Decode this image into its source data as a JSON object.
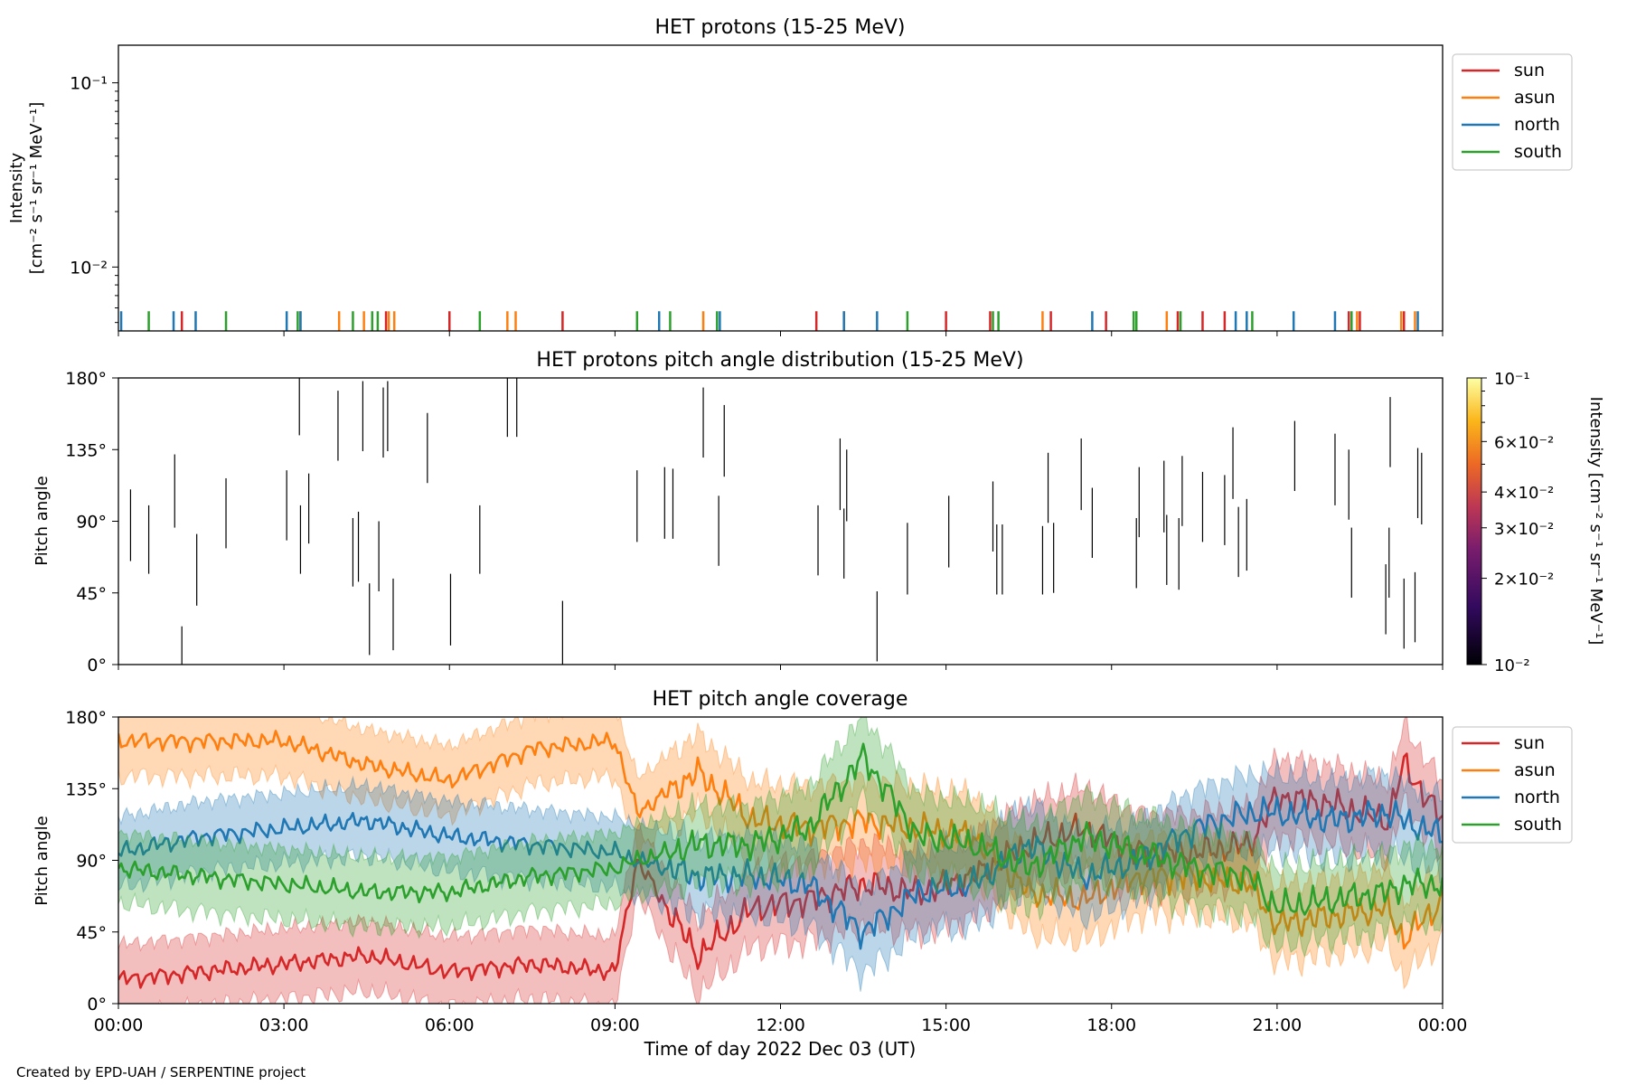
{
  "footer": "Created by EPD-UAH / SERPENTINE project",
  "x_axis": {
    "label": "Time of day 2022 Dec 03 (UT)",
    "ticks": [
      "00:00",
      "03:00",
      "06:00",
      "09:00",
      "12:00",
      "15:00",
      "18:00",
      "21:00",
      "00:00"
    ],
    "range_hours": [
      0,
      24
    ]
  },
  "colors": {
    "sun": "#d62728",
    "asun": "#ff7f0e",
    "north": "#1f77b4",
    "south": "#2ca02c"
  },
  "chart_data": [
    {
      "type": "line",
      "title": "HET protons (15-25 MeV)",
      "ylabel_line1": "Intensity",
      "ylabel_line2": "[cm⁻² s⁻¹ sr⁻¹ MeV⁻¹]",
      "yscale": "log",
      "ylim": [
        0.0045,
        0.16
      ],
      "yticks": [
        {
          "value": 0.01,
          "label": "10⁻²"
        },
        {
          "value": 0.1,
          "label": "10⁻¹"
        }
      ],
      "legend": {
        "placement": "outside-right",
        "entries": [
          "sun",
          "asun",
          "north",
          "south"
        ]
      },
      "series": [
        {
          "name": "sun",
          "value": 0.0055,
          "x": [
            1.15,
            4.85,
            6.0,
            8.05,
            12.65,
            15.0,
            15.8,
            16.9,
            17.9,
            19.2,
            19.65,
            20.05,
            22.3,
            22.5,
            23.3
          ]
        },
        {
          "name": "asun",
          "value": 0.0055,
          "x": [
            3.3,
            4.0,
            4.45,
            4.9,
            5.0,
            7.05,
            7.2,
            10.6,
            13.15,
            16.75,
            18.45,
            19.0,
            22.45,
            23.25,
            23.5
          ]
        },
        {
          "name": "north",
          "value": 0.0055,
          "x": [
            0.05,
            1.0,
            1.4,
            3.05,
            3.3,
            9.8,
            10.9,
            13.15,
            13.75,
            17.65,
            20.25,
            20.45,
            21.3,
            22.05,
            23.55
          ]
        },
        {
          "name": "south",
          "value": 0.0055,
          "x": [
            0.55,
            1.95,
            3.25,
            4.25,
            4.6,
            4.7,
            6.55,
            9.4,
            10.0,
            10.85,
            14.3,
            15.85,
            15.95,
            18.4,
            18.45,
            19.25,
            20.55,
            22.35
          ]
        }
      ]
    },
    {
      "type": "heatmap",
      "title": "HET protons pitch angle distribution (15-25 MeV)",
      "ylabel": "Pitch angle",
      "ylim": [
        0,
        180
      ],
      "yticks": [
        "0°",
        "45°",
        "90°",
        "135°",
        "180°"
      ],
      "colorbar": {
        "label": "Intensity [cm⁻² s⁻¹ sr⁻¹ MeV⁻¹]",
        "scale": "log",
        "range": [
          0.01,
          0.1
        ],
        "ticks": [
          {
            "value": 0.01,
            "label": "10⁻²"
          },
          {
            "value": 0.02,
            "label": "2×10⁻²"
          },
          {
            "value": 0.03,
            "label": "3×10⁻²"
          },
          {
            "value": 0.04,
            "label": "4×10⁻²"
          },
          {
            "value": 0.06,
            "label": "6×10⁻²"
          },
          {
            "value": 0.1,
            "label": "10⁻¹"
          }
        ]
      },
      "marks": [
        {
          "x": 0.22,
          "y0": 65,
          "y1": 110
        },
        {
          "x": 0.55,
          "y0": 57,
          "y1": 100
        },
        {
          "x": 1.02,
          "y0": 86,
          "y1": 132
        },
        {
          "x": 1.15,
          "y0": 0,
          "y1": 24
        },
        {
          "x": 1.42,
          "y0": 37,
          "y1": 82
        },
        {
          "x": 1.95,
          "y0": 73,
          "y1": 117
        },
        {
          "x": 3.05,
          "y0": 78,
          "y1": 122
        },
        {
          "x": 3.28,
          "y0": 144,
          "y1": 180
        },
        {
          "x": 3.3,
          "y0": 57,
          "y1": 100
        },
        {
          "x": 3.45,
          "y0": 76,
          "y1": 120
        },
        {
          "x": 3.98,
          "y0": 128,
          "y1": 172
        },
        {
          "x": 4.25,
          "y0": 49,
          "y1": 92
        },
        {
          "x": 4.35,
          "y0": 52,
          "y1": 96
        },
        {
          "x": 4.43,
          "y0": 134,
          "y1": 178
        },
        {
          "x": 4.55,
          "y0": 6,
          "y1": 51
        },
        {
          "x": 4.72,
          "y0": 46,
          "y1": 90
        },
        {
          "x": 4.8,
          "y0": 130,
          "y1": 174
        },
        {
          "x": 4.88,
          "y0": 134,
          "y1": 178
        },
        {
          "x": 4.98,
          "y0": 9,
          "y1": 54
        },
        {
          "x": 5.6,
          "y0": 114,
          "y1": 158
        },
        {
          "x": 6.02,
          "y0": 12,
          "y1": 57
        },
        {
          "x": 6.55,
          "y0": 57,
          "y1": 100
        },
        {
          "x": 7.05,
          "y0": 143,
          "y1": 180
        },
        {
          "x": 7.22,
          "y0": 143,
          "y1": 180
        },
        {
          "x": 8.05,
          "y0": 0,
          "y1": 40
        },
        {
          "x": 9.4,
          "y0": 77,
          "y1": 122
        },
        {
          "x": 9.9,
          "y0": 79,
          "y1": 124
        },
        {
          "x": 10.05,
          "y0": 79,
          "y1": 123
        },
        {
          "x": 10.6,
          "y0": 130,
          "y1": 174
        },
        {
          "x": 10.88,
          "y0": 62,
          "y1": 106
        },
        {
          "x": 10.98,
          "y0": 118,
          "y1": 163
        },
        {
          "x": 12.68,
          "y0": 56,
          "y1": 100
        },
        {
          "x": 13.08,
          "y0": 97,
          "y1": 142
        },
        {
          "x": 13.15,
          "y0": 54,
          "y1": 98
        },
        {
          "x": 13.2,
          "y0": 90,
          "y1": 135
        },
        {
          "x": 13.75,
          "y0": 2,
          "y1": 46
        },
        {
          "x": 14.3,
          "y0": 44,
          "y1": 89
        },
        {
          "x": 15.05,
          "y0": 61,
          "y1": 106
        },
        {
          "x": 15.85,
          "y0": 71,
          "y1": 115
        },
        {
          "x": 15.92,
          "y0": 44,
          "y1": 88
        },
        {
          "x": 16.02,
          "y0": 44,
          "y1": 88
        },
        {
          "x": 16.75,
          "y0": 44,
          "y1": 87
        },
        {
          "x": 16.85,
          "y0": 89,
          "y1": 133
        },
        {
          "x": 16.95,
          "y0": 45,
          "y1": 89
        },
        {
          "x": 17.45,
          "y0": 97,
          "y1": 142
        },
        {
          "x": 17.65,
          "y0": 67,
          "y1": 111
        },
        {
          "x": 18.45,
          "y0": 48,
          "y1": 92
        },
        {
          "x": 18.5,
          "y0": 80,
          "y1": 124
        },
        {
          "x": 18.95,
          "y0": 83,
          "y1": 128
        },
        {
          "x": 19.0,
          "y0": 50,
          "y1": 94
        },
        {
          "x": 19.22,
          "y0": 47,
          "y1": 92
        },
        {
          "x": 19.28,
          "y0": 87,
          "y1": 131
        },
        {
          "x": 19.65,
          "y0": 77,
          "y1": 121
        },
        {
          "x": 20.05,
          "y0": 75,
          "y1": 119
        },
        {
          "x": 20.2,
          "y0": 104,
          "y1": 149
        },
        {
          "x": 20.3,
          "y0": 55,
          "y1": 99
        },
        {
          "x": 20.45,
          "y0": 59,
          "y1": 104
        },
        {
          "x": 21.32,
          "y0": 109,
          "y1": 153
        },
        {
          "x": 22.05,
          "y0": 100,
          "y1": 145
        },
        {
          "x": 22.3,
          "y0": 91,
          "y1": 135
        },
        {
          "x": 22.35,
          "y0": 42,
          "y1": 86
        },
        {
          "x": 22.97,
          "y0": 19,
          "y1": 63
        },
        {
          "x": 23.03,
          "y0": 42,
          "y1": 86
        },
        {
          "x": 23.05,
          "y0": 124,
          "y1": 168
        },
        {
          "x": 23.3,
          "y0": 10,
          "y1": 54
        },
        {
          "x": 23.5,
          "y0": 14,
          "y1": 58
        },
        {
          "x": 23.55,
          "y0": 92,
          "y1": 136
        },
        {
          "x": 23.62,
          "y0": 88,
          "y1": 133
        }
      ]
    },
    {
      "type": "area",
      "title": "HET pitch angle coverage",
      "ylabel": "Pitch angle",
      "ylim": [
        0,
        180
      ],
      "yticks": [
        "0°",
        "45°",
        "90°",
        "135°",
        "180°"
      ],
      "legend": {
        "placement": "outside-right",
        "entries": [
          "sun",
          "asun",
          "north",
          "south"
        ]
      },
      "series": [
        {
          "name": "sun",
          "x": [
            0,
            1.5,
            3,
            4.5,
            6,
            7.5,
            9,
            9.4,
            10.5,
            11.5,
            12.5,
            13.5,
            14.5,
            15.5,
            16.5,
            17.5,
            18.5,
            19.5,
            20.5,
            21.0,
            22,
            23,
            23.3,
            24
          ],
          "center": [
            15,
            20,
            25,
            30,
            20,
            25,
            20,
            90,
            30,
            60,
            65,
            75,
            70,
            80,
            100,
            110,
            95,
            95,
            100,
            130,
            125,
            115,
            150,
            115
          ],
          "halfwidth": [
            22,
            22,
            22,
            22,
            22,
            22,
            22,
            22,
            24,
            24,
            26,
            26,
            26,
            26,
            26,
            26,
            24,
            24,
            24,
            24,
            24,
            24,
            24,
            24
          ]
        },
        {
          "name": "asun",
          "x": [
            0,
            1.5,
            3,
            4.5,
            6,
            7.5,
            9,
            9.4,
            10.5,
            11.5,
            12.5,
            13.5,
            14.5,
            15.5,
            16.5,
            17.5,
            18.5,
            19.5,
            20.5,
            21.0,
            22,
            23,
            23.3,
            24
          ],
          "center": [
            165,
            165,
            165,
            150,
            140,
            160,
            165,
            120,
            145,
            115,
            110,
            115,
            110,
            105,
            70,
            65,
            80,
            80,
            75,
            50,
            55,
            60,
            40,
            65
          ],
          "halfwidth": [
            22,
            22,
            22,
            22,
            22,
            22,
            22,
            22,
            24,
            24,
            26,
            26,
            26,
            26,
            26,
            26,
            24,
            24,
            24,
            24,
            24,
            24,
            24,
            24
          ]
        },
        {
          "name": "north",
          "x": [
            0,
            1.5,
            3,
            4.5,
            6,
            7.5,
            9,
            9.4,
            10.5,
            11.5,
            12.5,
            13.5,
            14.5,
            15.5,
            16.5,
            17.5,
            18.5,
            19.5,
            20.5,
            21.0,
            22,
            23,
            23.3,
            24
          ],
          "center": [
            95,
            105,
            110,
            115,
            105,
            100,
            95,
            90,
            80,
            80,
            75,
            45,
            70,
            75,
            100,
            80,
            90,
            110,
            120,
            120,
            115,
            120,
            115,
            105
          ],
          "halfwidth": [
            22,
            22,
            22,
            22,
            22,
            22,
            22,
            22,
            24,
            24,
            26,
            26,
            26,
            26,
            26,
            26,
            24,
            24,
            24,
            24,
            24,
            24,
            24,
            24
          ]
        },
        {
          "name": "south",
          "x": [
            0,
            1.5,
            3,
            4.5,
            6,
            7.5,
            9,
            9.4,
            10.5,
            11.5,
            12.5,
            13.5,
            14.5,
            15.5,
            16.5,
            17.5,
            18.5,
            19.5,
            20.5,
            21.0,
            22,
            23,
            23.3,
            24
          ],
          "center": [
            85,
            80,
            75,
            70,
            70,
            80,
            85,
            90,
            100,
            100,
            110,
            155,
            105,
            100,
            85,
            105,
            95,
            85,
            80,
            60,
            65,
            70,
            75,
            75
          ],
          "halfwidth": [
            22,
            22,
            22,
            22,
            22,
            22,
            22,
            22,
            24,
            24,
            26,
            26,
            26,
            26,
            26,
            26,
            24,
            24,
            24,
            24,
            24,
            24,
            24,
            24
          ]
        }
      ]
    }
  ]
}
